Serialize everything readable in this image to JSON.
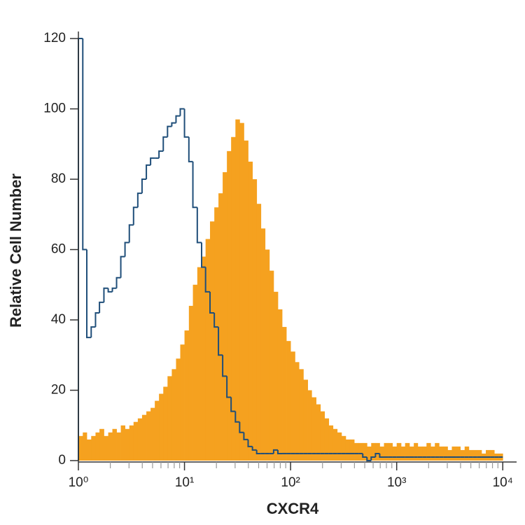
{
  "chart_data": {
    "type": "histogram",
    "x_label": "CXCR4",
    "y_label": "Relative Cell Number",
    "xlim": [
      1,
      13500
    ],
    "ylim": [
      0,
      122
    ],
    "log_x": true,
    "xticks": [
      {
        "value": 1,
        "label": "10⁰"
      },
      {
        "value": 10,
        "label": "10¹"
      },
      {
        "value": 100,
        "label": "10²"
      },
      {
        "value": 1000,
        "label": "10³"
      },
      {
        "value": 10000,
        "label": "10⁴"
      }
    ],
    "xminorticks": [
      2,
      3,
      4,
      5,
      6,
      7,
      8,
      9,
      20,
      30,
      40,
      50,
      60,
      70,
      80,
      90,
      200,
      300,
      400,
      500,
      600,
      700,
      800,
      900,
      2000,
      3000,
      4000,
      5000,
      6000,
      7000,
      8000,
      9000
    ],
    "yticks": [
      0,
      20,
      40,
      60,
      80,
      100,
      120
    ],
    "bins": [
      1,
      1.1,
      1.2,
      1.32,
      1.45,
      1.58,
      1.74,
      1.91,
      2.09,
      2.29,
      2.51,
      2.75,
      3.02,
      3.31,
      3.63,
      3.98,
      4.37,
      4.79,
      5.25,
      5.75,
      6.31,
      6.92,
      7.59,
      8.32,
      9.12,
      10,
      11,
      12,
      13.2,
      14.5,
      15.8,
      17.4,
      19.1,
      20.9,
      22.9,
      25.1,
      27.5,
      30.2,
      33.1,
      36.3,
      39.8,
      43.7,
      47.9,
      52.5,
      57.5,
      63.1,
      69.2,
      75.9,
      83.2,
      91.2,
      100,
      110,
      120,
      132,
      145,
      158,
      174,
      191,
      209,
      229,
      251,
      275,
      302,
      331,
      363,
      398,
      437,
      479,
      525,
      575,
      631,
      692,
      759,
      832,
      912,
      1000,
      1100,
      1200,
      1320,
      1450,
      1580,
      1740,
      1910,
      2090,
      2290,
      2510,
      2750,
      3020,
      3310,
      3630,
      3980,
      4370,
      4790,
      5250,
      5750,
      6310,
      6920,
      7590,
      8320,
      9120,
      10000
    ],
    "series": [
      {
        "color": "#f5a11f",
        "fill": true,
        "values": [
          7,
          8,
          6,
          7,
          8,
          9,
          7,
          8,
          9,
          8,
          10,
          9,
          10,
          11,
          12,
          13,
          14,
          15,
          17,
          19,
          21,
          24,
          26,
          29,
          33,
          37,
          44,
          50,
          55,
          58,
          63,
          68,
          72,
          76,
          82,
          88,
          92,
          97,
          96,
          91,
          85,
          80,
          73,
          66,
          60,
          54,
          48,
          43,
          38,
          34,
          31,
          28,
          26,
          23,
          20,
          18,
          16,
          14,
          12,
          10,
          9,
          8,
          7,
          6,
          6,
          5,
          5,
          5,
          4,
          5,
          5,
          4,
          5,
          5,
          4,
          5,
          4,
          5,
          4,
          5,
          4,
          4,
          5,
          4,
          5,
          4,
          4,
          3,
          4,
          4,
          3,
          4,
          3,
          3,
          3,
          2,
          3,
          3,
          2,
          2
        ]
      },
      {
        "color": "#1f4e79",
        "fill": false,
        "values": [
          120,
          60,
          35,
          38,
          42,
          45,
          49,
          48,
          49,
          52,
          58,
          62,
          67,
          72,
          76,
          80,
          84,
          86,
          86,
          88,
          92,
          95,
          96,
          98,
          100,
          92,
          85,
          72,
          62,
          55,
          48,
          42,
          38,
          30,
          24,
          18,
          14,
          11,
          8,
          6,
          4,
          3,
          2,
          2,
          2,
          2,
          3,
          2,
          2,
          2,
          2,
          2,
          2,
          2,
          2,
          2,
          2,
          2,
          2,
          2,
          2,
          2,
          2,
          2,
          2,
          2,
          2,
          1,
          0,
          1,
          2,
          1,
          1,
          1,
          1,
          1,
          1,
          1,
          1,
          1,
          1,
          1,
          1,
          1,
          1,
          1,
          1,
          1,
          1,
          1,
          1,
          1,
          1,
          1,
          1,
          1,
          1,
          1,
          1,
          1
        ]
      }
    ]
  }
}
